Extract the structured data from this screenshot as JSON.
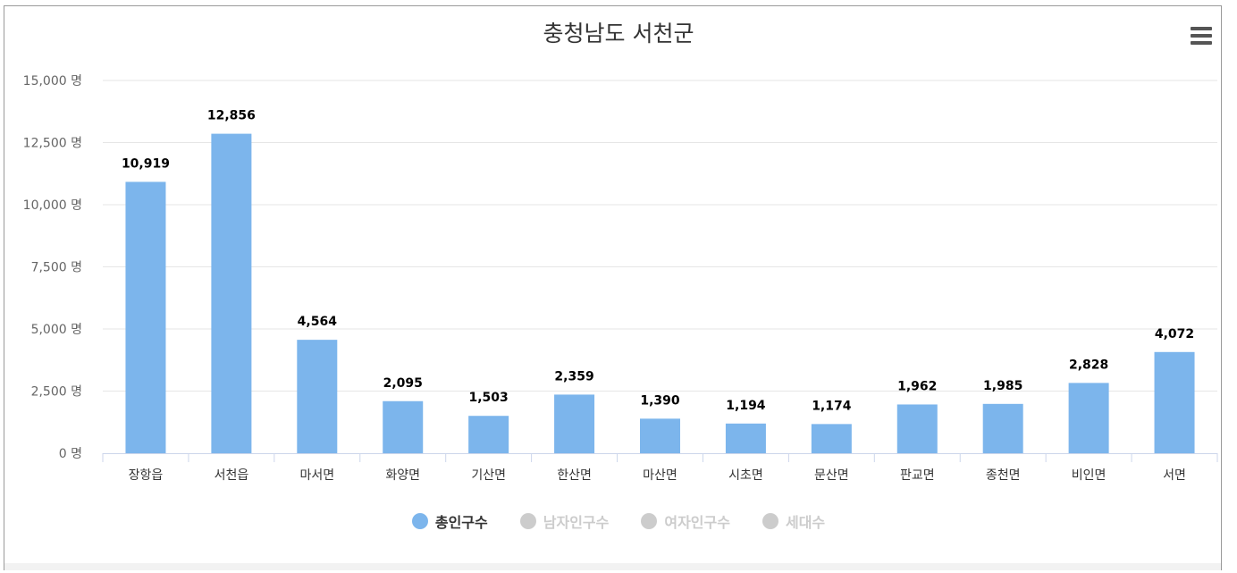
{
  "chart_data": {
    "type": "bar",
    "title": "충청남도 서천군",
    "categories": [
      "장항읍",
      "서천읍",
      "마서면",
      "화양면",
      "기산면",
      "한산면",
      "마산면",
      "시초면",
      "문산면",
      "판교면",
      "종천면",
      "비인면",
      "서면"
    ],
    "series": [
      {
        "name": "총인구수",
        "color": "#7cb5ec",
        "values": [
          10919,
          12856,
          4564,
          2095,
          1503,
          2359,
          1390,
          1194,
          1174,
          1962,
          1985,
          2828,
          4072
        ],
        "value_labels": [
          "10,919",
          "12,856",
          "4,564",
          "2,095",
          "1,503",
          "2,359",
          "1,390",
          "1,194",
          "1,174",
          "1,962",
          "1,985",
          "2,828",
          "4,072"
        ]
      }
    ],
    "ylim": [
      0,
      15000
    ],
    "yticks": [
      0,
      2500,
      5000,
      7500,
      10000,
      12500,
      15000
    ],
    "ytick_labels": [
      "0 명",
      "2,500 명",
      "5,000 명",
      "7,500 명",
      "10,000 명",
      "12,500 명",
      "15,000 명"
    ],
    "grid": true,
    "legend_position": "bottom-center"
  },
  "legend": {
    "items": [
      {
        "label": "총인구수",
        "color": "#7cb5ec",
        "active": true
      },
      {
        "label": "남자인구수",
        "color": "#cccccc",
        "active": false
      },
      {
        "label": "여자인구수",
        "color": "#cccccc",
        "active": false
      },
      {
        "label": "세대수",
        "color": "#cccccc",
        "active": false
      }
    ]
  },
  "menu": {
    "icon": "hamburger-menu-icon"
  }
}
